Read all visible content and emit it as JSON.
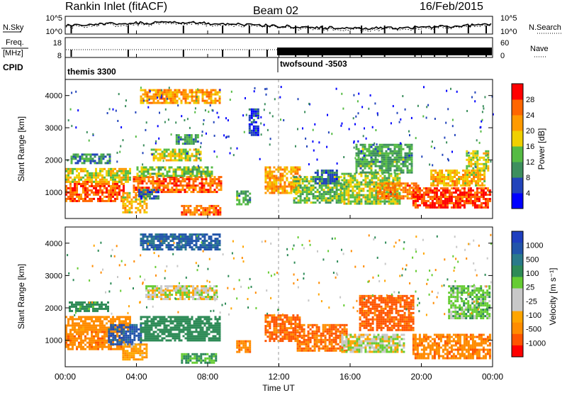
{
  "header": {
    "site": "Rankin Inlet (fitACF)",
    "beam": "Beam 02",
    "date": "16/Feb/2015"
  },
  "noise_panel": {
    "left_label": "N.Sky",
    "right_label": "N.Search",
    "ticks_left": [
      "10^5",
      "10^0"
    ],
    "ticks_right": [
      "10^5",
      "10^0"
    ]
  },
  "freq_panel": {
    "left_label_1": "Freq.",
    "left_label_2": "[MHz]",
    "right_label": "Nave",
    "ticks_left": [
      "18",
      "8"
    ],
    "ticks_right": [
      "60",
      "0"
    ]
  },
  "cpid": {
    "label": "CPID",
    "modes": [
      {
        "name": "themis 3300",
        "start_hour": 0
      },
      {
        "name": "twofsound -3503",
        "start_hour": 12.1
      }
    ]
  },
  "colors": {
    "power_scale": [
      "#0000ff",
      "#2244bb",
      "#3d8f5e",
      "#55bb44",
      "#f0d000",
      "#ff9a00",
      "#ff6600",
      "#ff0000"
    ],
    "velocity_scale": [
      "#ff0000",
      "#ff5500",
      "#ff8c00",
      "#ffa500",
      "#c8c8c8",
      "#c8c8c8",
      "#66cc33",
      "#2e8b57",
      "#2a7a8a",
      "#2255aa",
      "#1f3fbf"
    ]
  },
  "chart_data": [
    {
      "type": "heatmap",
      "name": "power",
      "ylabel": "Slant Range [km]",
      "y_ticks": [
        "1000",
        "2000",
        "3000",
        "4000"
      ],
      "ylim": [
        180,
        4500
      ],
      "xlim": [
        0,
        24
      ],
      "colorbar": {
        "label": "Power [dB]",
        "ticks": [
          "4",
          "8",
          "12",
          "16",
          "20",
          "24",
          "28"
        ],
        "range": [
          0,
          32
        ]
      },
      "bands": [
        {
          "t0": 0.0,
          "t1": 3.3,
          "r0": 700,
          "r1": 1350,
          "v": 27
        },
        {
          "t0": 0.0,
          "t1": 3.6,
          "r0": 1350,
          "r1": 1750,
          "v": 18
        },
        {
          "t0": 0.3,
          "t1": 2.5,
          "r0": 1900,
          "r1": 2200,
          "v": 10
        },
        {
          "t0": 3.2,
          "t1": 4.6,
          "r0": 400,
          "r1": 1000,
          "v": 20
        },
        {
          "t0": 3.8,
          "t1": 8.7,
          "r0": 1000,
          "r1": 1500,
          "v": 26
        },
        {
          "t0": 4.0,
          "t1": 8.2,
          "r0": 1500,
          "r1": 1800,
          "v": 14
        },
        {
          "t0": 4.8,
          "t1": 7.6,
          "r0": 2000,
          "r1": 2350,
          "v": 17
        },
        {
          "t0": 6.2,
          "t1": 7.5,
          "r0": 2500,
          "r1": 2800,
          "v": 11
        },
        {
          "t0": 4.2,
          "t1": 8.7,
          "r0": 3800,
          "r1": 4200,
          "v": 22
        },
        {
          "t0": 6.5,
          "t1": 8.7,
          "r0": 300,
          "r1": 600,
          "v": 25
        },
        {
          "t0": 4.1,
          "t1": 5.2,
          "r0": 800,
          "r1": 1100,
          "v": 7
        },
        {
          "t0": 9.6,
          "t1": 10.4,
          "r0": 650,
          "r1": 1050,
          "v": 12
        },
        {
          "t0": 10.3,
          "t1": 10.8,
          "r0": 2800,
          "r1": 3600,
          "v": 5
        },
        {
          "t0": 11.2,
          "t1": 13.2,
          "r0": 1000,
          "r1": 1800,
          "v": 22
        },
        {
          "t0": 12.8,
          "t1": 15.5,
          "r0": 700,
          "r1": 1500,
          "v": 14
        },
        {
          "t0": 14.0,
          "t1": 15.2,
          "r0": 1300,
          "r1": 1700,
          "v": 8
        },
        {
          "t0": 15.5,
          "t1": 18.8,
          "r0": 650,
          "r1": 1600,
          "v": 16
        },
        {
          "t0": 16.3,
          "t1": 19.5,
          "r0": 1600,
          "r1": 2500,
          "v": 12
        },
        {
          "t0": 17.5,
          "t1": 19.8,
          "r0": 800,
          "r1": 1300,
          "v": 24
        },
        {
          "t0": 19.5,
          "t1": 23.8,
          "r0": 500,
          "r1": 1150,
          "v": 28
        },
        {
          "t0": 20.5,
          "t1": 23.5,
          "r0": 1200,
          "r1": 1700,
          "v": 20
        },
        {
          "t0": 22.5,
          "t1": 23.8,
          "r0": 1700,
          "r1": 2300,
          "v": 17
        }
      ]
    },
    {
      "type": "heatmap",
      "name": "velocity",
      "ylabel": "Slant Range [km]",
      "y_ticks": [
        "1000",
        "2000",
        "3000",
        "4000"
      ],
      "ylim": [
        180,
        4500
      ],
      "xlim": [
        0,
        24
      ],
      "colorbar": {
        "label": "Velocity [m s⁻¹]",
        "ticks": [
          "-1000",
          "-500",
          "-100",
          "-25",
          "25",
          "100",
          "500",
          "1000"
        ]
      },
      "bands": [
        {
          "t0": 0.0,
          "t1": 3.3,
          "r0": 700,
          "r1": 1350,
          "v": -200
        },
        {
          "t0": 0.0,
          "t1": 3.6,
          "r0": 1350,
          "r1": 1750,
          "v": -150
        },
        {
          "t0": 0.2,
          "t1": 2.4,
          "r0": 1900,
          "r1": 2200,
          "v": 150
        },
        {
          "t0": 2.4,
          "t1": 4.2,
          "r0": 900,
          "r1": 1500,
          "v": 700
        },
        {
          "t0": 3.2,
          "t1": 4.6,
          "r0": 400,
          "r1": 900,
          "v": -80
        },
        {
          "t0": 4.2,
          "t1": 8.7,
          "r0": 1000,
          "r1": 1750,
          "v": 200
        },
        {
          "t0": 4.5,
          "t1": 8.5,
          "r0": 2300,
          "r1": 2700,
          "v": 0
        },
        {
          "t0": 4.2,
          "t1": 8.7,
          "r0": 3800,
          "r1": 4300,
          "v": 600
        },
        {
          "t0": 6.5,
          "t1": 8.5,
          "r0": 300,
          "r1": 600,
          "v": 120
        },
        {
          "t0": 9.6,
          "t1": 10.4,
          "r0": 650,
          "r1": 1000,
          "v": -200
        },
        {
          "t0": 11.2,
          "t1": 13.2,
          "r0": 1000,
          "r1": 1800,
          "v": -300
        },
        {
          "t0": 13.0,
          "t1": 15.8,
          "r0": 700,
          "r1": 1500,
          "v": -250
        },
        {
          "t0": 15.5,
          "t1": 19.0,
          "r0": 650,
          "r1": 1200,
          "v": 0
        },
        {
          "t0": 16.5,
          "t1": 19.5,
          "r0": 1300,
          "r1": 2400,
          "v": -350
        },
        {
          "t0": 19.5,
          "t1": 23.8,
          "r0": 450,
          "r1": 1200,
          "v": -200
        },
        {
          "t0": 21.5,
          "t1": 23.8,
          "r0": 1700,
          "r1": 2700,
          "v": 60
        }
      ]
    }
  ],
  "x_axis": {
    "ticks": [
      "00:00",
      "04:00",
      "08:00",
      "12:00",
      "16:00",
      "20:00",
      "00:00"
    ],
    "label": "Time UT"
  }
}
